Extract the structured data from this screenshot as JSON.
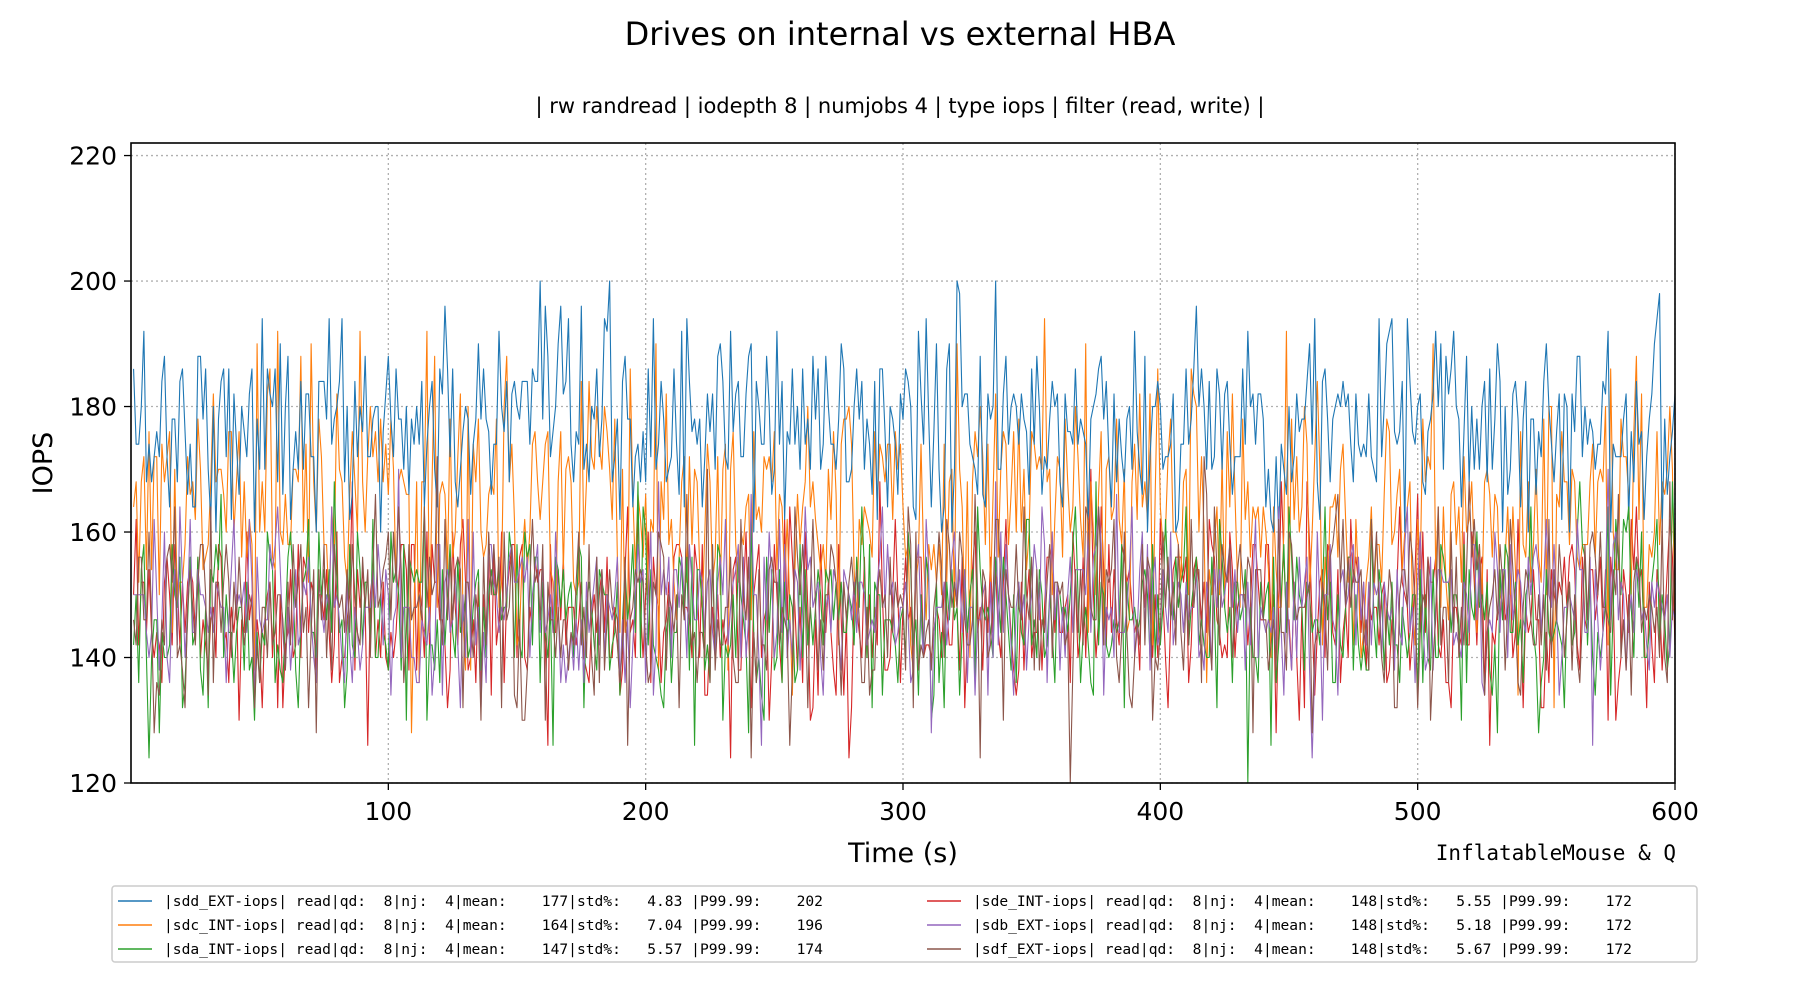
{
  "chart_data": {
    "type": "line",
    "title": "Drives on internal vs external HBA",
    "subtitle": "| rw randread | iodepth 8 | numjobs 4 | type iops | filter (read, write) |",
    "xlabel": "Time (s)",
    "ylabel": "IOPS",
    "credit": "InflatableMouse & Q",
    "xlim": [
      0,
      600
    ],
    "ylim": [
      120,
      222
    ],
    "xticks": [
      100,
      200,
      300,
      400,
      500,
      600
    ],
    "yticks": [
      120,
      140,
      160,
      180,
      200,
      220
    ],
    "grid": true,
    "legend_position": "bottom",
    "series": [
      {
        "name": "|sdd_EXT-iops| read|qd:  8|nj:  4|mean:    177|std%:   4.83 |P99.99:    202",
        "color": "#1f77b4",
        "mean": 177,
        "std_pct": 4.83,
        "min": 160,
        "max": 202
      },
      {
        "name": "|sdc_INT-iops| read|qd:  8|nj:  4|mean:    164|std%:   7.04 |P99.99:    196",
        "color": "#ff7f0e",
        "mean": 164,
        "std_pct": 7.04,
        "min": 120,
        "max": 196
      },
      {
        "name": "|sda_INT-iops| read|qd:  8|nj:  4|mean:    147|std%:   5.57 |P99.99:    174",
        "color": "#2ca02c",
        "mean": 147,
        "std_pct": 5.57,
        "min": 120,
        "max": 174
      },
      {
        "name": "|sde_INT-iops| read|qd:  8|nj:  4|mean:    148|std%:   5.55 |P99.99:    172",
        "color": "#d62728",
        "mean": 148,
        "std_pct": 5.55,
        "min": 124,
        "max": 172
      },
      {
        "name": "|sdb_EXT-iops| read|qd:  8|nj:  4|mean:    148|std%:   5.18 |P99.99:    172",
        "color": "#9467bd",
        "mean": 148,
        "std_pct": 5.18,
        "min": 122,
        "max": 172
      },
      {
        "name": "|sdf_EXT-iops| read|qd:  8|nj:  4|mean:    148|std%:   5.67 |P99.99:    172",
        "color": "#8c564b",
        "mean": 148,
        "std_pct": 5.67,
        "min": 120,
        "max": 172
      }
    ]
  }
}
